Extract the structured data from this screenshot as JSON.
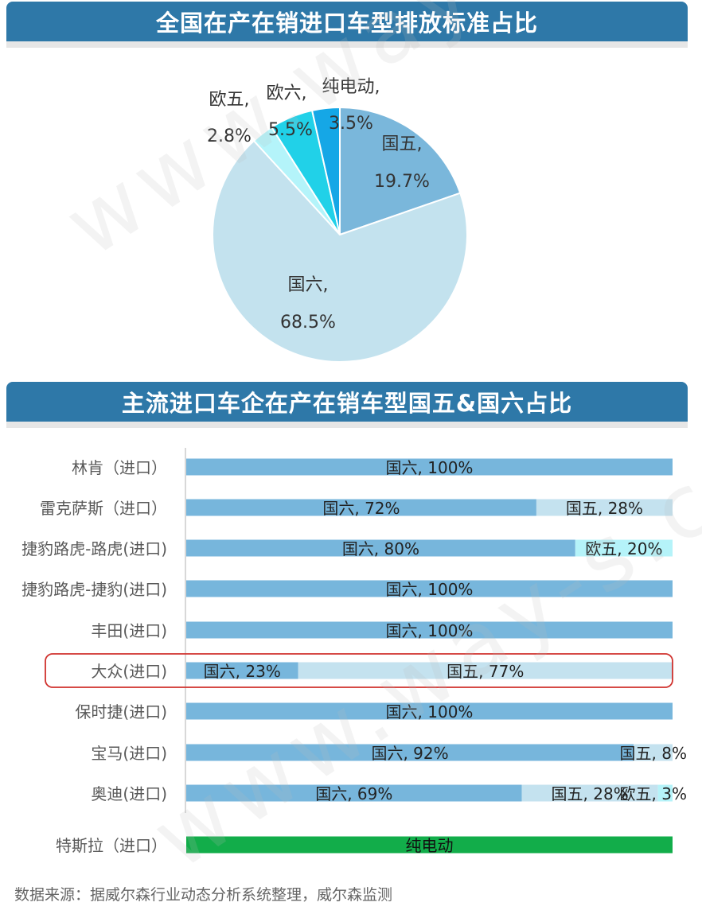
{
  "chart_data": [
    {
      "type": "pie",
      "title": "全国在产在销进口车型排放标准占比",
      "slices": [
        {
          "name": "国五",
          "value": 19.7,
          "label": "19.7%",
          "color": "#7ab7db"
        },
        {
          "name": "国六",
          "value": 68.5,
          "label": "68.5%",
          "color": "#c3e2ee"
        },
        {
          "name": "欧五",
          "value": 2.8,
          "label": "2.8%",
          "color": "#b4f4fa"
        },
        {
          "name": "欧六",
          "value": 5.5,
          "label": "5.5%",
          "color": "#21d1e8"
        },
        {
          "name": "纯电动",
          "value": 3.5,
          "label": "3.5%",
          "color": "#15a7e6"
        }
      ]
    },
    {
      "type": "bar",
      "orientation": "horizontal",
      "stacked": true,
      "title": "主流进口车企在产在销车型国五&国六占比",
      "highlight": "大众(进口)",
      "rows": [
        {
          "label": "林肯（进口）",
          "segments": [
            {
              "name": "国六",
              "value": 100,
              "text": "国六, 100%",
              "color": "#77b6dc"
            }
          ]
        },
        {
          "label": "雷克萨斯（进口）",
          "segments": [
            {
              "name": "国六",
              "value": 72,
              "text": "国六, 72%",
              "color": "#77b6dc"
            },
            {
              "name": "国五",
              "value": 28,
              "text": "国五, 28%",
              "color": "#c4e2ef"
            }
          ]
        },
        {
          "label": "捷豹路虎-路虎(进口)",
          "segments": [
            {
              "name": "国六",
              "value": 80,
              "text": "国六, 80%",
              "color": "#77b6dc"
            },
            {
              "name": "欧五",
              "value": 20,
              "text": "欧五, 20%",
              "color": "#b5f3f9"
            }
          ]
        },
        {
          "label": "捷豹路虎-捷豹(进口)",
          "segments": [
            {
              "name": "国六",
              "value": 100,
              "text": "国六, 100%",
              "color": "#77b6dc"
            }
          ]
        },
        {
          "label": "丰田(进口)",
          "segments": [
            {
              "name": "国六",
              "value": 100,
              "text": "国六, 100%",
              "color": "#77b6dc"
            }
          ]
        },
        {
          "label": "大众(进口)",
          "segments": [
            {
              "name": "国六",
              "value": 23,
              "text": "国六, 23%",
              "color": "#77b6dc"
            },
            {
              "name": "国五",
              "value": 77,
              "text": "国五, 77%",
              "color": "#c4e2ef"
            }
          ]
        },
        {
          "label": "保时捷(进口)",
          "segments": [
            {
              "name": "国六",
              "value": 100,
              "text": "国六, 100%",
              "color": "#77b6dc"
            }
          ]
        },
        {
          "label": "宝马(进口)",
          "segments": [
            {
              "name": "国六",
              "value": 92,
              "text": "国六, 92%",
              "color": "#77b6dc"
            },
            {
              "name": "国五",
              "value": 8,
              "text": "国五, 8%",
              "color": "#c4e2ef"
            }
          ]
        },
        {
          "label": "奥迪(进口)",
          "segments": [
            {
              "name": "国六",
              "value": 69,
              "text": "国六, 69%",
              "color": "#77b6dc"
            },
            {
              "name": "国五",
              "value": 28,
              "text": "国五, 28%",
              "color": "#c4e2ef"
            },
            {
              "name": "欧五",
              "value": 3,
              "text": "欧五, 3%",
              "color": "#b5f3f9"
            }
          ]
        }
      ],
      "extra_row": {
        "label": "特斯拉（进口）",
        "segments": [
          {
            "name": "纯电动",
            "value": 100,
            "text": "纯电动",
            "color": "#12ad4a"
          }
        ]
      }
    }
  ],
  "watermark": "www.way-s.cn",
  "source": "数据来源：据威尔森行业动态分析系统整理，威尔森监测",
  "colors": {
    "banner": "#2e78a8",
    "highlight_border": "#d0312d"
  }
}
